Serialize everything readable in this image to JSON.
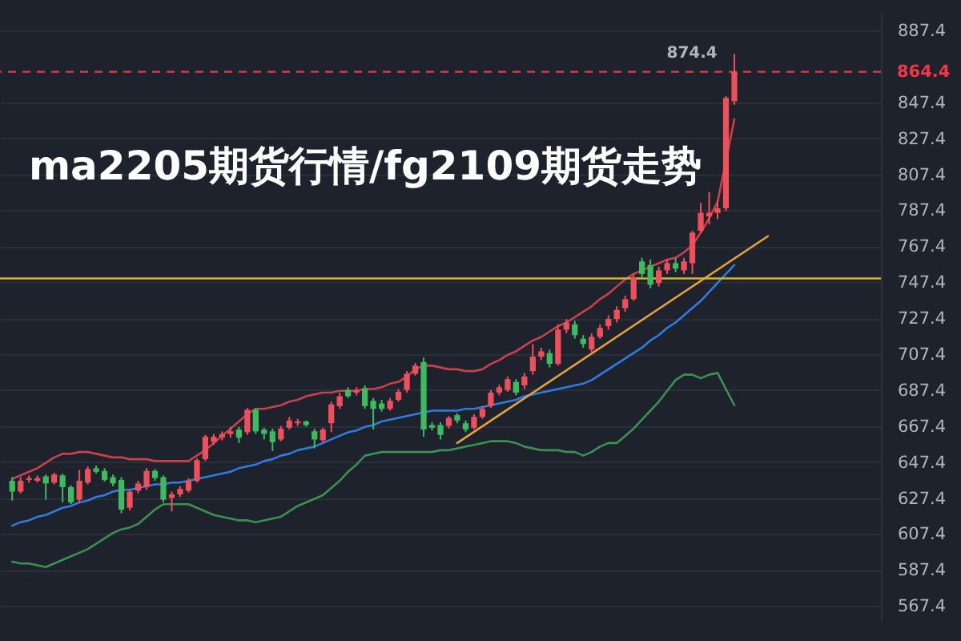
{
  "chart_data": {
    "type": "candlestick",
    "title": "ma2205期货行情/fg2109期货走势",
    "categories": [
      null,
      null,
      null,
      null,
      null,
      null,
      null,
      null,
      null,
      null,
      null,
      null,
      null,
      null,
      null,
      null,
      null,
      null,
      null,
      null,
      null,
      null,
      null,
      null,
      null,
      null,
      null,
      null,
      null,
      null,
      null,
      null,
      null,
      null,
      null,
      null,
      null,
      null,
      null,
      null,
      null,
      null,
      null,
      null,
      null,
      null,
      null,
      null,
      null,
      null,
      null,
      null,
      null,
      null,
      null,
      null,
      null,
      null,
      null,
      null,
      null,
      null,
      null,
      null,
      null,
      null,
      null,
      null,
      null,
      null,
      null,
      null,
      null,
      null,
      null,
      null,
      null,
      null,
      null,
      null,
      null,
      null,
      null,
      null,
      null,
      null,
      null,
      null,
      null,
      null,
      null,
      null,
      null,
      null,
      null,
      null,
      null,
      null,
      null,
      null,
      null,
      null,
      null
    ],
    "ohlc": [
      [
        637,
        639,
        626,
        631
      ],
      [
        631,
        639,
        630,
        637
      ],
      [
        637.5,
        640,
        636,
        638.5
      ],
      [
        637,
        640,
        636,
        638.5
      ],
      [
        639.5,
        640.5,
        626.5,
        635.5
      ],
      [
        636,
        641.5,
        635,
        640.5
      ],
      [
        640,
        641,
        625,
        633.5
      ],
      [
        633.5,
        634.5,
        624,
        625
      ],
      [
        626.5,
        643,
        625,
        637
      ],
      [
        636,
        645,
        635,
        643.5
      ],
      [
        644,
        645.5,
        641,
        642
      ],
      [
        642.5,
        644,
        636.5,
        637.5
      ],
      [
        639,
        640.5,
        634,
        635.5
      ],
      [
        637.5,
        639,
        619,
        621
      ],
      [
        622,
        632,
        620.5,
        631
      ],
      [
        631.5,
        637,
        630,
        635.5
      ],
      [
        633.5,
        644,
        632,
        642.5
      ],
      [
        642.5,
        643.5,
        637,
        638.5
      ],
      [
        639,
        640,
        625,
        626.5
      ],
      [
        627.5,
        631,
        620,
        629.5
      ],
      [
        629.5,
        634,
        628,
        632.5
      ],
      [
        631.5,
        638.5,
        630.5,
        637
      ],
      [
        637,
        649.5,
        636,
        648.5
      ],
      [
        649,
        662.5,
        648,
        661.5
      ],
      [
        658.5,
        663,
        657,
        661.5
      ],
      [
        661,
        664.5,
        659.5,
        663
      ],
      [
        663,
        667,
        661,
        664.5
      ],
      [
        665.5,
        667,
        658,
        661
      ],
      [
        664,
        677.5,
        662.5,
        676.5
      ],
      [
        676.5,
        677.5,
        663,
        664.5
      ],
      [
        665.5,
        666.5,
        660,
        663
      ],
      [
        664.5,
        666,
        653.5,
        658.5
      ],
      [
        660,
        667.5,
        659,
        666
      ],
      [
        666.5,
        672.5,
        665.5,
        670.5
      ],
      [
        669,
        671.5,
        667.5,
        670
      ],
      [
        670,
        670.5,
        667,
        668
      ],
      [
        664.5,
        666,
        655,
        660
      ],
      [
        659.5,
        666.5,
        658,
        665.5
      ],
      [
        669,
        681,
        664,
        679.5
      ],
      [
        678.5,
        686,
        677,
        684
      ],
      [
        687.5,
        689,
        683,
        684
      ],
      [
        686,
        689,
        684.5,
        687.5
      ],
      [
        688.5,
        690,
        677,
        678.5
      ],
      [
        681.5,
        683,
        665.5,
        677
      ],
      [
        680,
        682,
        675.5,
        677
      ],
      [
        677,
        683,
        676,
        681.5
      ],
      [
        682,
        688,
        681,
        686.5
      ],
      [
        687.5,
        698,
        686,
        696.5
      ],
      [
        696.5,
        702.5,
        695.5,
        701
      ],
      [
        703,
        705.5,
        661.5,
        665.5
      ],
      [
        668,
        669.5,
        665,
        666.5
      ],
      [
        668,
        669.5,
        660,
        662.5
      ],
      [
        667.5,
        673,
        666,
        672
      ],
      [
        673.5,
        674.5,
        669,
        670.5
      ],
      [
        669,
        670.5,
        664,
        665.5
      ],
      [
        666.5,
        674,
        665.5,
        672.5
      ],
      [
        672.5,
        678.5,
        671.5,
        677
      ],
      [
        678.5,
        687.5,
        677.5,
        686
      ],
      [
        686,
        690.5,
        684.5,
        689
      ],
      [
        687.5,
        695,
        686.5,
        693.5
      ],
      [
        692,
        693.5,
        684.5,
        686
      ],
      [
        690,
        697,
        688,
        695
      ],
      [
        698,
        713,
        696,
        706
      ],
      [
        706,
        711,
        704,
        709
      ],
      [
        708,
        710,
        700,
        702
      ],
      [
        702,
        724,
        701,
        721
      ],
      [
        721,
        727,
        719,
        725
      ],
      [
        724,
        726,
        716,
        718
      ],
      [
        716,
        718,
        711,
        713
      ],
      [
        710,
        719,
        708,
        717
      ],
      [
        717,
        724,
        716,
        722
      ],
      [
        723,
        729,
        721,
        727
      ],
      [
        727,
        734,
        725,
        732
      ],
      [
        733,
        740,
        731,
        738
      ],
      [
        738,
        752,
        737,
        750
      ],
      [
        759,
        761,
        750,
        752
      ],
      [
        757,
        760,
        744,
        746
      ],
      [
        747,
        756,
        745,
        754
      ],
      [
        754,
        760,
        752,
        758
      ],
      [
        758,
        761,
        753,
        755
      ],
      [
        754,
        761,
        752,
        759
      ],
      [
        758,
        776,
        752,
        775
      ],
      [
        776,
        791.5,
        775,
        786
      ],
      [
        784,
        797.5,
        779.5,
        786
      ],
      [
        786,
        793,
        782.5,
        788.5
      ],
      [
        788.5,
        851,
        787,
        850
      ],
      [
        848,
        874.4,
        846,
        864.4
      ],
      null,
      null,
      null,
      null,
      null,
      null,
      null,
      null,
      null,
      null,
      null,
      null,
      null,
      null,
      null,
      null
    ],
    "colors": [
      "#3dbb5f",
      "#ef4f5b",
      "#ef4f5b",
      "#ef4f5b",
      "#3dbb5f",
      "#ef4f5b",
      "#3dbb5f",
      "#3dbb5f",
      "#ef4f5b",
      "#ef4f5b",
      "#3dbb5f",
      "#3dbb5f",
      "#3dbb5f",
      "#3dbb5f",
      "#ef4f5b",
      "#ef4f5b",
      "#ef4f5b",
      "#3dbb5f",
      "#3dbb5f",
      "#ef4f5b",
      "#ef4f5b",
      "#ef4f5b",
      "#ef4f5b",
      "#ef4f5b",
      "#ef4f5b",
      "#ef4f5b",
      "#ef4f5b",
      "#3dbb5f",
      "#ef4f5b",
      "#3dbb5f",
      "#3dbb5f",
      "#3dbb5f",
      "#ef4f5b",
      "#ef4f5b",
      "#ef4f5b",
      "#3dbb5f",
      "#3dbb5f",
      "#ef4f5b",
      "#ef4f5b",
      "#ef4f5b",
      "#3dbb5f",
      "#ef4f5b",
      "#3dbb5f",
      "#3dbb5f",
      "#3dbb5f",
      "#ef4f5b",
      "#ef4f5b",
      "#ef4f5b",
      "#ef4f5b",
      "#3dbb5f",
      "#3dbb5f",
      "#3dbb5f",
      "#ef4f5b",
      "#3dbb5f",
      "#3dbb5f",
      "#ef4f5b",
      "#ef4f5b",
      "#ef4f5b",
      "#ef4f5b",
      "#ef4f5b",
      "#3dbb5f",
      "#ef4f5b",
      "#ef4f5b",
      "#ef4f5b",
      "#3dbb5f",
      "#ef4f5b",
      "#ef4f5b",
      "#3dbb5f",
      "#3dbb5f",
      "#ef4f5b",
      "#ef4f5b",
      "#ef4f5b",
      "#ef4f5b",
      "#ef4f5b",
      "#ef4f5b",
      "#3dbb5f",
      "#3dbb5f",
      "#ef4f5b",
      "#ef4f5b",
      "#3dbb5f",
      "#ef4f5b",
      "#ef4f5b",
      "#ef4f5b",
      "#ef4f5b",
      "#ef4f5b",
      "#ef4f5b",
      "#ef4f5b",
      null,
      null,
      null,
      null,
      null,
      null,
      null,
      null,
      null,
      null,
      null,
      null,
      null,
      null,
      null,
      null
    ],
    "series": [
      {
        "type": "line",
        "color": "#c8414b",
        "values": [
          638,
          640,
          642,
          644,
          647,
          650,
          652,
          652,
          653,
          653,
          652,
          651,
          650,
          650,
          649,
          649,
          649,
          648,
          648,
          648,
          648,
          648,
          651,
          654,
          658,
          662,
          666,
          670,
          674,
          677,
          677,
          678,
          679,
          681,
          682,
          684,
          685,
          686,
          686,
          687,
          687,
          687,
          688,
          688,
          689,
          691,
          692,
          695,
          699,
          701,
          701,
          700,
          699,
          699,
          698,
          698,
          699,
          702,
          704,
          707,
          709,
          712,
          715,
          717,
          720,
          723,
          725,
          728,
          731,
          734,
          738,
          741,
          745,
          749,
          752,
          754,
          756,
          758,
          760,
          761,
          764,
          768,
          775,
          783,
          792,
          815,
          838,
          null,
          null,
          null,
          null,
          null,
          null,
          null,
          null,
          null,
          null,
          null,
          null,
          null,
          null,
          null,
          null
        ]
      },
      {
        "type": "line",
        "color": "#2f7ce0",
        "values": [
          612,
          614,
          615,
          617,
          618,
          620,
          622,
          623,
          625,
          626,
          628,
          629,
          631,
          632,
          632,
          633,
          634,
          635,
          635,
          636,
          636,
          637,
          638,
          639,
          640,
          641,
          642,
          644,
          645,
          646,
          648,
          649,
          651,
          652,
          654,
          655,
          656,
          658,
          660,
          662,
          664,
          665,
          667,
          668,
          670,
          671,
          672,
          673,
          674,
          675,
          676,
          676,
          676,
          676,
          677,
          677,
          678,
          679,
          680,
          681,
          682,
          684,
          685,
          686,
          687,
          688,
          689,
          690,
          691,
          693,
          696,
          699,
          702,
          705,
          708,
          711,
          715,
          718,
          722,
          725,
          729,
          733,
          737,
          742,
          747,
          752,
          757,
          null,
          null,
          null,
          null,
          null,
          null,
          null,
          null,
          null,
          null,
          null,
          null,
          null,
          null,
          null,
          null
        ]
      },
      {
        "type": "line",
        "color": "#3a9150",
        "values": [
          592,
          591,
          591,
          590,
          589,
          591,
          593,
          595,
          597,
          599,
          602,
          605,
          608,
          610,
          611,
          613,
          617,
          621,
          624,
          624,
          624,
          624,
          622,
          620,
          618,
          617,
          616,
          615,
          615,
          614,
          615,
          616,
          617,
          620,
          623,
          625,
          627,
          629,
          633,
          637,
          642,
          646,
          651,
          652,
          653,
          653,
          653,
          653,
          653,
          653,
          653,
          654,
          654,
          655,
          656,
          657,
          658,
          659,
          659,
          659,
          658,
          656,
          655,
          654,
          654,
          654,
          653,
          653,
          651,
          653,
          656,
          658,
          658,
          662,
          666,
          671,
          676,
          681,
          687,
          693,
          696,
          696,
          694,
          696,
          697,
          688,
          679,
          null,
          null,
          null,
          null,
          null,
          null,
          null,
          null,
          null,
          null,
          null,
          null,
          null,
          null,
          null,
          null
        ]
      },
      {
        "type": "line",
        "color": "#e8a33a",
        "values": [
          null,
          null,
          null,
          null,
          null,
          null,
          null,
          null,
          null,
          null,
          null,
          null,
          null,
          null,
          null,
          null,
          null,
          null,
          null,
          null,
          null,
          null,
          null,
          null,
          null,
          null,
          null,
          null,
          null,
          null,
          null,
          null,
          null,
          null,
          null,
          null,
          null,
          null,
          null,
          null,
          null,
          null,
          null,
          null,
          null,
          null,
          null,
          null,
          null,
          null,
          null,
          null,
          null,
          658,
          null,
          null,
          null,
          null,
          null,
          null,
          null,
          null,
          null,
          null,
          null,
          null,
          null,
          null,
          null,
          null,
          null,
          null,
          null,
          null,
          null,
          null,
          null,
          null,
          null,
          null,
          null,
          null,
          null,
          null,
          null,
          null,
          null,
          null,
          null,
          null,
          773,
          null,
          null,
          null,
          null,
          null,
          null,
          null,
          null,
          null,
          null,
          null,
          null
        ]
      }
    ],
    "ylim": [
      559.5,
      897.2
    ],
    "yticks": [
      567.4,
      587.4,
      607.4,
      627.4,
      647.4,
      667.4,
      687.4,
      707.4,
      727.4,
      747.4,
      767.4,
      787.4,
      807.4,
      827.4,
      847.4,
      887.4
    ],
    "tick_labels": "y",
    "grid": "y",
    "ref_lines": [
      {
        "axis": "y",
        "value": 864.4,
        "label": "864.4",
        "color": "#f23645",
        "line_style": "dashed"
      },
      {
        "axis": "y",
        "value": 749.5,
        "color": "#d4b62c"
      }
    ],
    "annotations": [
      "874.4"
    ]
  }
}
